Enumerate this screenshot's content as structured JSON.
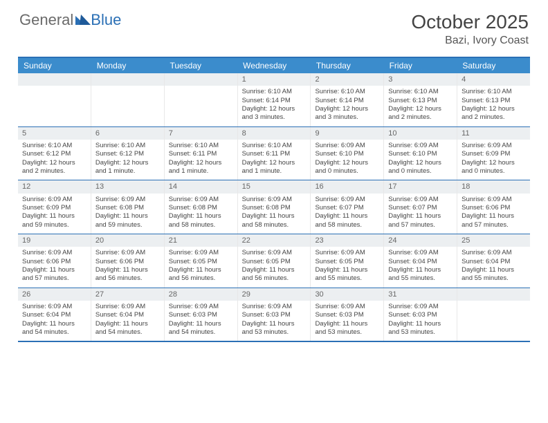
{
  "logo": {
    "general": "General",
    "blue": "Blue"
  },
  "title": "October 2025",
  "location": "Bazi, Ivory Coast",
  "colors": {
    "header_bg": "#3b8ccc",
    "border": "#2a6fb5",
    "daynum_bg": "#eceff1",
    "text": "#444444"
  },
  "day_headers": [
    "Sunday",
    "Monday",
    "Tuesday",
    "Wednesday",
    "Thursday",
    "Friday",
    "Saturday"
  ],
  "weeks": [
    [
      {
        "day": "",
        "sunrise": "",
        "sunset": "",
        "daylight": ""
      },
      {
        "day": "",
        "sunrise": "",
        "sunset": "",
        "daylight": ""
      },
      {
        "day": "",
        "sunrise": "",
        "sunset": "",
        "daylight": ""
      },
      {
        "day": "1",
        "sunrise": "Sunrise: 6:10 AM",
        "sunset": "Sunset: 6:14 PM",
        "daylight": "Daylight: 12 hours and 3 minutes."
      },
      {
        "day": "2",
        "sunrise": "Sunrise: 6:10 AM",
        "sunset": "Sunset: 6:14 PM",
        "daylight": "Daylight: 12 hours and 3 minutes."
      },
      {
        "day": "3",
        "sunrise": "Sunrise: 6:10 AM",
        "sunset": "Sunset: 6:13 PM",
        "daylight": "Daylight: 12 hours and 2 minutes."
      },
      {
        "day": "4",
        "sunrise": "Sunrise: 6:10 AM",
        "sunset": "Sunset: 6:13 PM",
        "daylight": "Daylight: 12 hours and 2 minutes."
      }
    ],
    [
      {
        "day": "5",
        "sunrise": "Sunrise: 6:10 AM",
        "sunset": "Sunset: 6:12 PM",
        "daylight": "Daylight: 12 hours and 2 minutes."
      },
      {
        "day": "6",
        "sunrise": "Sunrise: 6:10 AM",
        "sunset": "Sunset: 6:12 PM",
        "daylight": "Daylight: 12 hours and 1 minute."
      },
      {
        "day": "7",
        "sunrise": "Sunrise: 6:10 AM",
        "sunset": "Sunset: 6:11 PM",
        "daylight": "Daylight: 12 hours and 1 minute."
      },
      {
        "day": "8",
        "sunrise": "Sunrise: 6:10 AM",
        "sunset": "Sunset: 6:11 PM",
        "daylight": "Daylight: 12 hours and 1 minute."
      },
      {
        "day": "9",
        "sunrise": "Sunrise: 6:09 AM",
        "sunset": "Sunset: 6:10 PM",
        "daylight": "Daylight: 12 hours and 0 minutes."
      },
      {
        "day": "10",
        "sunrise": "Sunrise: 6:09 AM",
        "sunset": "Sunset: 6:10 PM",
        "daylight": "Daylight: 12 hours and 0 minutes."
      },
      {
        "day": "11",
        "sunrise": "Sunrise: 6:09 AM",
        "sunset": "Sunset: 6:09 PM",
        "daylight": "Daylight: 12 hours and 0 minutes."
      }
    ],
    [
      {
        "day": "12",
        "sunrise": "Sunrise: 6:09 AM",
        "sunset": "Sunset: 6:09 PM",
        "daylight": "Daylight: 11 hours and 59 minutes."
      },
      {
        "day": "13",
        "sunrise": "Sunrise: 6:09 AM",
        "sunset": "Sunset: 6:08 PM",
        "daylight": "Daylight: 11 hours and 59 minutes."
      },
      {
        "day": "14",
        "sunrise": "Sunrise: 6:09 AM",
        "sunset": "Sunset: 6:08 PM",
        "daylight": "Daylight: 11 hours and 58 minutes."
      },
      {
        "day": "15",
        "sunrise": "Sunrise: 6:09 AM",
        "sunset": "Sunset: 6:08 PM",
        "daylight": "Daylight: 11 hours and 58 minutes."
      },
      {
        "day": "16",
        "sunrise": "Sunrise: 6:09 AM",
        "sunset": "Sunset: 6:07 PM",
        "daylight": "Daylight: 11 hours and 58 minutes."
      },
      {
        "day": "17",
        "sunrise": "Sunrise: 6:09 AM",
        "sunset": "Sunset: 6:07 PM",
        "daylight": "Daylight: 11 hours and 57 minutes."
      },
      {
        "day": "18",
        "sunrise": "Sunrise: 6:09 AM",
        "sunset": "Sunset: 6:06 PM",
        "daylight": "Daylight: 11 hours and 57 minutes."
      }
    ],
    [
      {
        "day": "19",
        "sunrise": "Sunrise: 6:09 AM",
        "sunset": "Sunset: 6:06 PM",
        "daylight": "Daylight: 11 hours and 57 minutes."
      },
      {
        "day": "20",
        "sunrise": "Sunrise: 6:09 AM",
        "sunset": "Sunset: 6:06 PM",
        "daylight": "Daylight: 11 hours and 56 minutes."
      },
      {
        "day": "21",
        "sunrise": "Sunrise: 6:09 AM",
        "sunset": "Sunset: 6:05 PM",
        "daylight": "Daylight: 11 hours and 56 minutes."
      },
      {
        "day": "22",
        "sunrise": "Sunrise: 6:09 AM",
        "sunset": "Sunset: 6:05 PM",
        "daylight": "Daylight: 11 hours and 56 minutes."
      },
      {
        "day": "23",
        "sunrise": "Sunrise: 6:09 AM",
        "sunset": "Sunset: 6:05 PM",
        "daylight": "Daylight: 11 hours and 55 minutes."
      },
      {
        "day": "24",
        "sunrise": "Sunrise: 6:09 AM",
        "sunset": "Sunset: 6:04 PM",
        "daylight": "Daylight: 11 hours and 55 minutes."
      },
      {
        "day": "25",
        "sunrise": "Sunrise: 6:09 AM",
        "sunset": "Sunset: 6:04 PM",
        "daylight": "Daylight: 11 hours and 55 minutes."
      }
    ],
    [
      {
        "day": "26",
        "sunrise": "Sunrise: 6:09 AM",
        "sunset": "Sunset: 6:04 PM",
        "daylight": "Daylight: 11 hours and 54 minutes."
      },
      {
        "day": "27",
        "sunrise": "Sunrise: 6:09 AM",
        "sunset": "Sunset: 6:04 PM",
        "daylight": "Daylight: 11 hours and 54 minutes."
      },
      {
        "day": "28",
        "sunrise": "Sunrise: 6:09 AM",
        "sunset": "Sunset: 6:03 PM",
        "daylight": "Daylight: 11 hours and 54 minutes."
      },
      {
        "day": "29",
        "sunrise": "Sunrise: 6:09 AM",
        "sunset": "Sunset: 6:03 PM",
        "daylight": "Daylight: 11 hours and 53 minutes."
      },
      {
        "day": "30",
        "sunrise": "Sunrise: 6:09 AM",
        "sunset": "Sunset: 6:03 PM",
        "daylight": "Daylight: 11 hours and 53 minutes."
      },
      {
        "day": "31",
        "sunrise": "Sunrise: 6:09 AM",
        "sunset": "Sunset: 6:03 PM",
        "daylight": "Daylight: 11 hours and 53 minutes."
      },
      {
        "day": "",
        "sunrise": "",
        "sunset": "",
        "daylight": ""
      }
    ]
  ]
}
